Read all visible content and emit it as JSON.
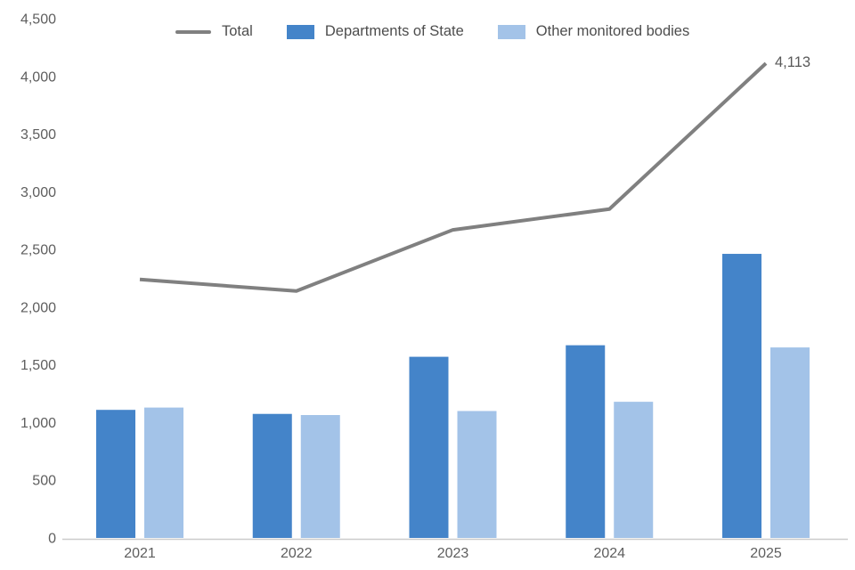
{
  "legend": {
    "items": [
      {
        "label": "Total",
        "swatch": "line",
        "color": "#808080"
      },
      {
        "label": "Departments of State",
        "swatch": "rect",
        "color": "#4484C9"
      },
      {
        "label": "Other monitored bodies",
        "swatch": "rect",
        "color": "#A3C3E8"
      }
    ]
  },
  "chart_data": {
    "type": "bar+line",
    "title": "",
    "xlabel": "",
    "ylabel": "",
    "categories": [
      "2021",
      "2022",
      "2023",
      "2024",
      "2025"
    ],
    "series": [
      {
        "name": "Total",
        "type": "line",
        "color": "#808080",
        "values": [
          2240,
          2140,
          2670,
          2850,
          4113
        ]
      },
      {
        "name": "Departments of State",
        "type": "bar",
        "color": "#4484C9",
        "values": [
          1110,
          1075,
          1570,
          1670,
          2462
        ]
      },
      {
        "name": "Other monitored bodies",
        "type": "bar",
        "color": "#A3C3E8",
        "values": [
          1130,
          1065,
          1100,
          1180,
          1651
        ]
      }
    ],
    "ylim": [
      0,
      4500
    ],
    "ytick_step": 500,
    "ytick_labels": [
      "0",
      "500",
      "1,000",
      "1,500",
      "2,000",
      "2,500",
      "3,000",
      "3,500",
      "4,000",
      "4,500"
    ],
    "grid": false,
    "legend_position": "top",
    "end_label": {
      "series": "Total",
      "category": "2025",
      "text": "4,113"
    }
  },
  "colors": {
    "axis_line": "#cccccc",
    "tick_text": "#5e5e5e",
    "legend_text": "#4d4d4d",
    "background": "#ffffff"
  }
}
